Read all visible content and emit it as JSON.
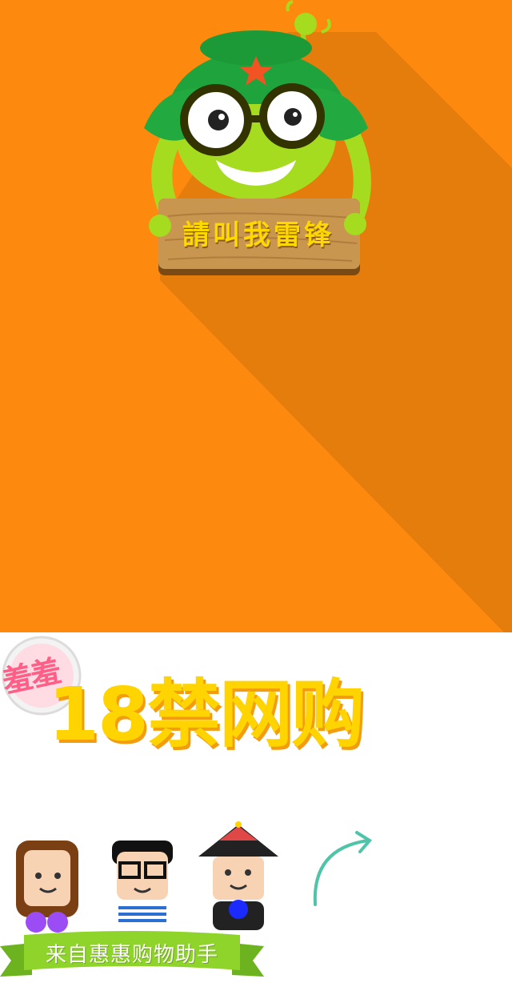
{
  "hero": {
    "background_color": "#fd8a0f",
    "mascot_icon": "green-frog-mascot-with-army-cap-and-glasses",
    "sign_text": "請叫我雷锋"
  },
  "promo": {
    "stamp_text": "羞羞",
    "headline": "18禁网购",
    "headline_color": "#ffd400",
    "avatars": [
      "girl-avatar-icon",
      "glasses-boy-avatar-icon",
      "qing-official-avatar-icon"
    ],
    "arrow_icon": "curved-arrow-icon",
    "ribbon_text": "来自惠惠购物助手",
    "ribbon_color": "#8fd42a"
  }
}
